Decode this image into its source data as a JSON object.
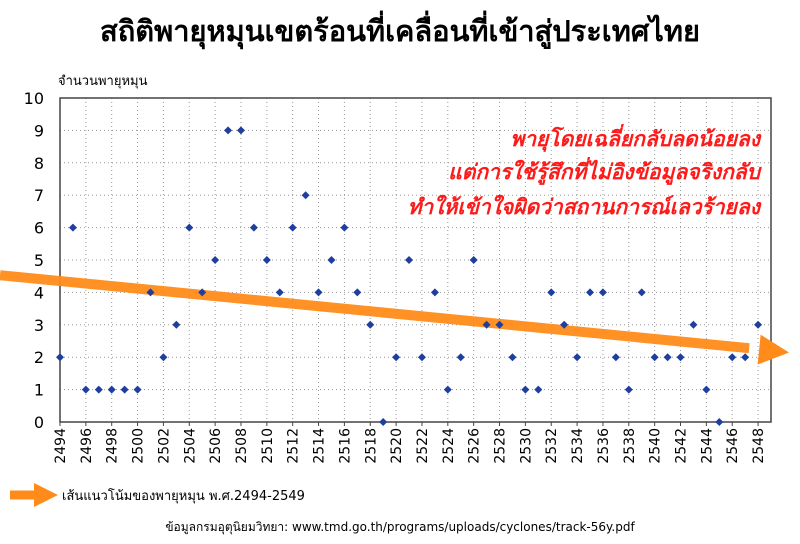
{
  "header": {
    "title": "สถิติพายุหมุนเขตร้อนที่เคลื่อนที่เข้าสู่ประเทศไทย",
    "y_axis_label": "จำนวนพายุหมุน"
  },
  "annotation": {
    "line1": "พายุโดยเฉลี่ยกลับลดน้อยลง",
    "line2": "แต่การใช้รู้สึกที่ไม่อิงข้อมูลจริงกลับ",
    "line3": "ทำให้เข้าใจผิดว่าสถานการณ์เลวร้ายลง"
  },
  "legend": {
    "trend_label": "เส้นแนวโน้มของพายุหมุน พ.ศ.2494-2549"
  },
  "source": {
    "text": "ข้อมูลกรมอุตุนิยมวิทยา: www.tmd.go.th/programs/uploads/cyclones/track-56y.pdf"
  },
  "colors": {
    "point": "#1f3f9e",
    "trend": "#ff8c1a",
    "grid": "#999999",
    "annotation": "#ff1a1a",
    "plot_border": "#444444"
  },
  "chart_data": {
    "type": "scatter",
    "title": "สถิติพายุหมุนเขตร้อนที่เคลื่อนที่เข้าสู่ประเทศไทย",
    "xlabel": "",
    "ylabel": "จำนวนพายุหมุน",
    "xlim": [
      2494,
      2549
    ],
    "ylim": [
      0,
      10
    ],
    "yticks": [
      0,
      1,
      2,
      3,
      4,
      5,
      6,
      7,
      8,
      9,
      10
    ],
    "xticks": [
      2494,
      2496,
      2498,
      2500,
      2502,
      2504,
      2506,
      2508,
      2510,
      2512,
      2514,
      2516,
      2518,
      2520,
      2522,
      2524,
      2526,
      2528,
      2530,
      2532,
      2534,
      2536,
      2538,
      2540,
      2542,
      2544,
      2546,
      2548
    ],
    "grid": true,
    "x": [
      2494,
      2495,
      2496,
      2497,
      2498,
      2499,
      2500,
      2501,
      2502,
      2503,
      2504,
      2505,
      2506,
      2507,
      2508,
      2509,
      2510,
      2511,
      2512,
      2513,
      2514,
      2515,
      2516,
      2517,
      2518,
      2519,
      2520,
      2521,
      2522,
      2523,
      2524,
      2525,
      2526,
      2527,
      2528,
      2529,
      2530,
      2531,
      2532,
      2533,
      2534,
      2535,
      2536,
      2537,
      2538,
      2539,
      2540,
      2541,
      2542,
      2543,
      2544,
      2545,
      2546,
      2547,
      2548
    ],
    "y": [
      2,
      6,
      1,
      1,
      1,
      1,
      1,
      4,
      2,
      3,
      6,
      4,
      5,
      9,
      9,
      6,
      5,
      4,
      6,
      7,
      4,
      5,
      6,
      4,
      3,
      0,
      2,
      5,
      2,
      4,
      1,
      2,
      5,
      3,
      3,
      2,
      1,
      1,
      4,
      3,
      2,
      4,
      4,
      2,
      1,
      4,
      2,
      2,
      2,
      3,
      1,
      0,
      2,
      2,
      3
    ],
    "trend": {
      "name": "เส้นแนวโน้มของพายุหมุน พ.ศ.2494-2549",
      "start": [
        2494,
        4.35
      ],
      "end": [
        2549,
        2.2
      ]
    }
  }
}
